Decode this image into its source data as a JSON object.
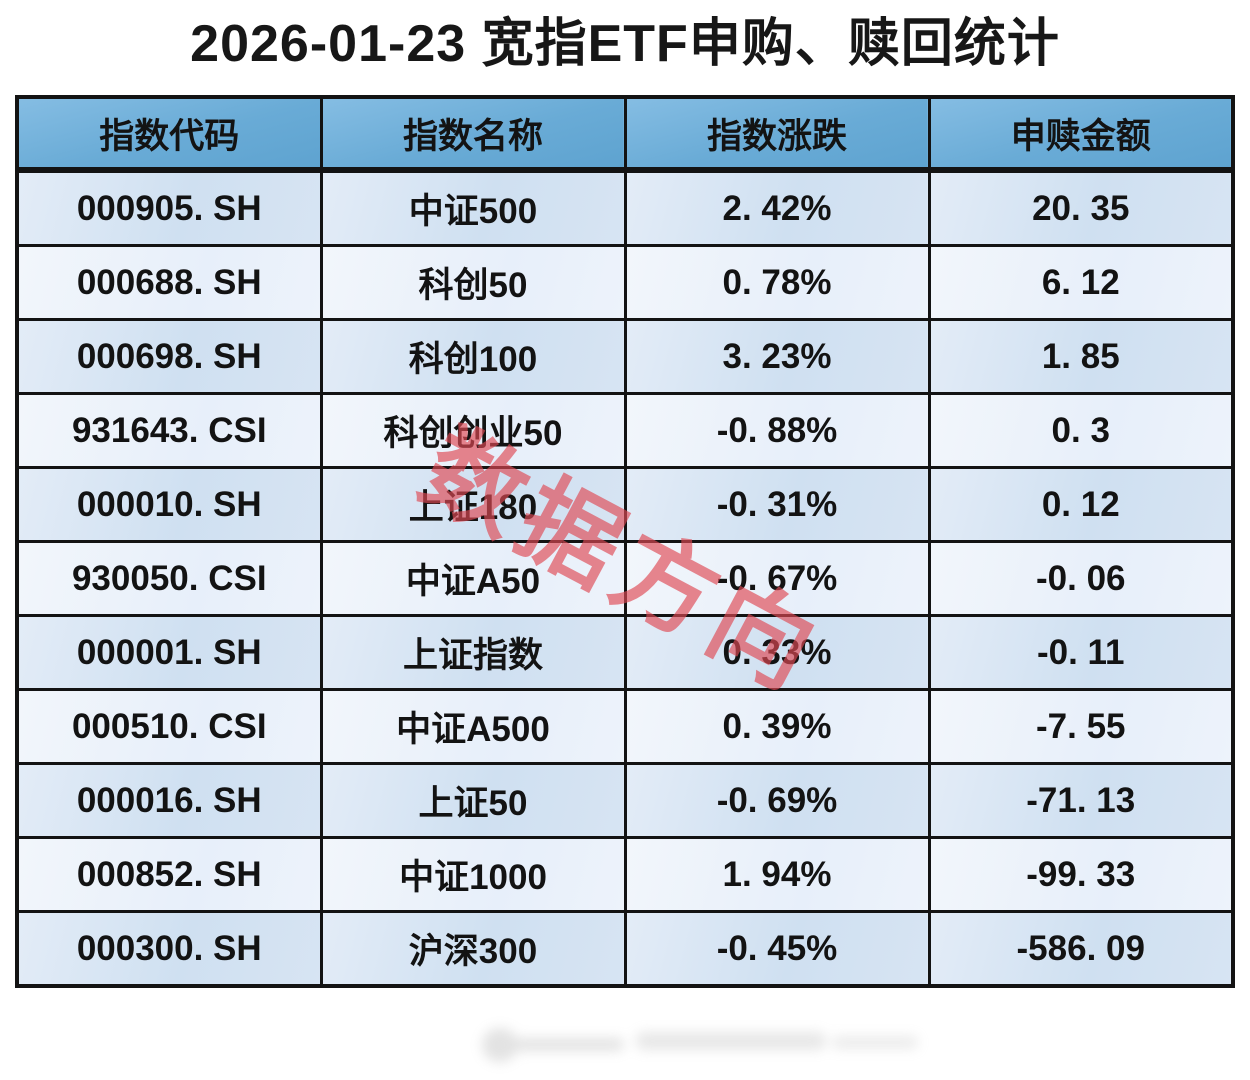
{
  "page": {
    "title": "2026-01-23 宽指ETF申购、赎回统计"
  },
  "watermarks": {
    "diagonal_text": "数据方向"
  },
  "colors": {
    "header_bg": "#69abd6",
    "row_dark_bg": "#d2e1f2",
    "row_light_bg": "#eaf1fa",
    "border": "#131313",
    "text": "#131313",
    "watermark_red": "#df4954",
    "background": "#ffffff"
  },
  "chart_data": {
    "type": "table",
    "title": "2026-01-23 宽指ETF申购、赎回统计",
    "columns": [
      "指数代码",
      "指数名称",
      "指数涨跌",
      "申赎金额"
    ],
    "column_keys": [
      "code",
      "name",
      "change",
      "amount"
    ],
    "rows": [
      {
        "code": "000905.SH",
        "name": "中证500",
        "change": "2.42%",
        "amount": "20.35"
      },
      {
        "code": "000688.SH",
        "name": "科创50",
        "change": "0.78%",
        "amount": "6.12"
      },
      {
        "code": "000698.SH",
        "name": "科创100",
        "change": "3.23%",
        "amount": "1.85"
      },
      {
        "code": "931643.CSI",
        "name": "科创创业50",
        "change": "-0.88%",
        "amount": "0.3"
      },
      {
        "code": "000010.SH",
        "name": "上证180",
        "change": "-0.31%",
        "amount": "0.12"
      },
      {
        "code": "930050.CSI",
        "name": "中证A50",
        "change": "-0.67%",
        "amount": "-0.06"
      },
      {
        "code": "000001.SH",
        "name": "上证指数",
        "change": "0.33%",
        "amount": "-0.11"
      },
      {
        "code": "000510.CSI",
        "name": "中证A500",
        "change": "0.39%",
        "amount": "-7.55"
      },
      {
        "code": "000016.SH",
        "name": "上证50",
        "change": "-0.69%",
        "amount": "-71.13"
      },
      {
        "code": "000852.SH",
        "name": "中证1000",
        "change": "1.94%",
        "amount": "-99.33"
      },
      {
        "code": "000300.SH",
        "name": "沪深300",
        "change": "-0.45%",
        "amount": "-586.09"
      }
    ],
    "layout": {
      "row_striping": "odd rows darker blue, even rows lighter blue",
      "grid": true
    }
  }
}
